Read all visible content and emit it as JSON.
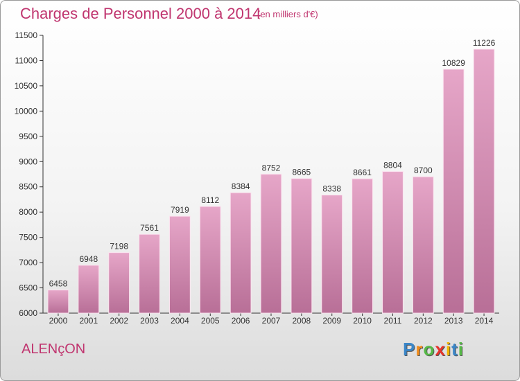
{
  "title": "Charges de Personnel 2000 à 2014",
  "subtitle": "(en milliers d'€)",
  "city": "ALENçON",
  "logo": {
    "text": "Proxiti",
    "letters": [
      "P",
      "r",
      "o",
      "x",
      "i",
      "t",
      "i"
    ],
    "colors": [
      "#3a86c8",
      "#f28c1b",
      "#56b947",
      "#e8332a",
      "#f4b400",
      "#3a86c8",
      "#56b947"
    ]
  },
  "colors": {
    "accent": "#c0356f",
    "bar": "#d98ab3"
  },
  "chart_data": {
    "type": "bar",
    "categories": [
      "2000",
      "2001",
      "2002",
      "2003",
      "2004",
      "2005",
      "2006",
      "2007",
      "2008",
      "2009",
      "2010",
      "2011",
      "2012",
      "2013",
      "2014"
    ],
    "values": [
      6458,
      6948,
      7198,
      7561,
      7919,
      8112,
      8384,
      8752,
      8665,
      8338,
      8661,
      8804,
      8700,
      10829,
      11226
    ],
    "title": "Charges de Personnel 2000 à 2014",
    "subtitle": "(en milliers d'€)",
    "ylim": [
      6000,
      11500
    ],
    "yticks": [
      6000,
      6500,
      7000,
      7500,
      8000,
      8500,
      9000,
      9500,
      10000,
      10500,
      11000,
      11500
    ],
    "grid": false
  }
}
